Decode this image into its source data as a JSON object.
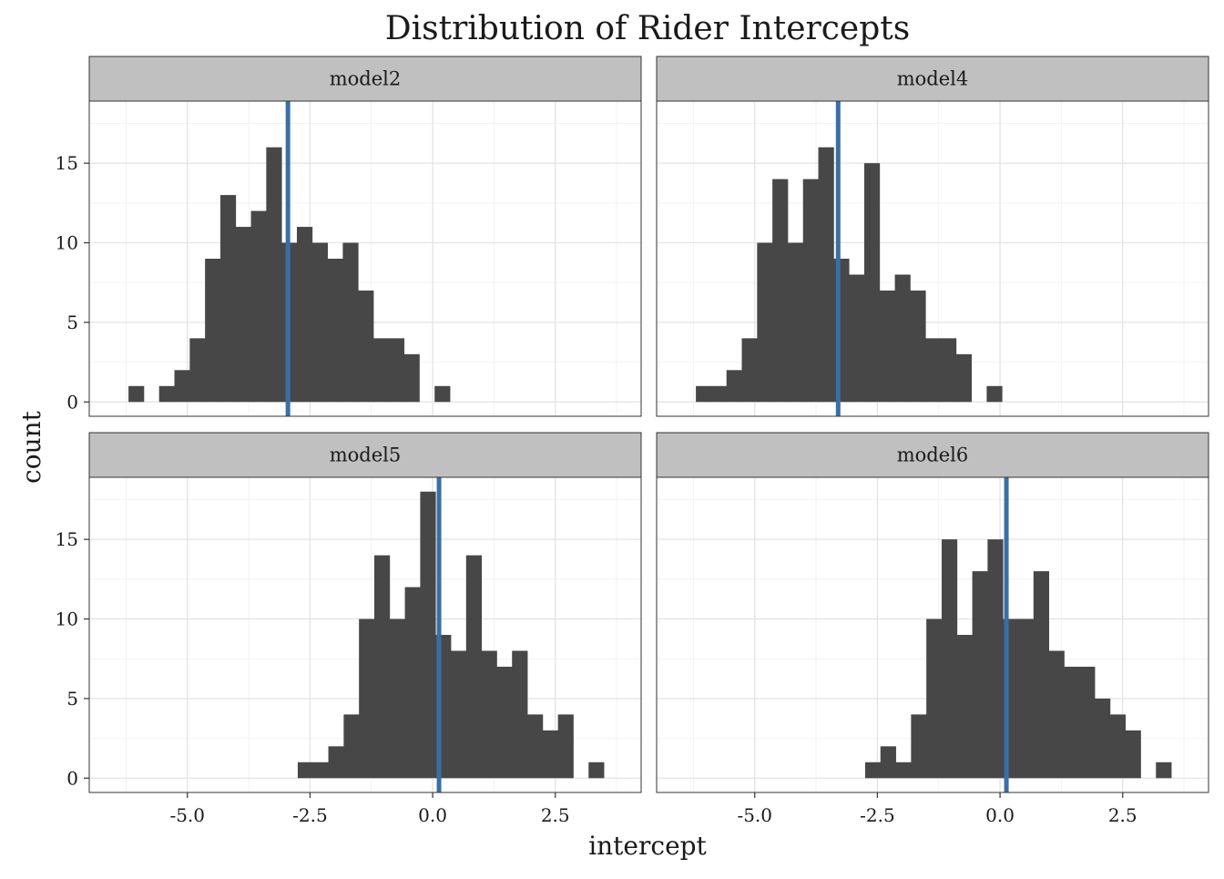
{
  "chart_data": {
    "type": "bar",
    "subtype": "faceted-histogram",
    "title": "Distribution of Rider Intercepts",
    "xlabel": "intercept",
    "ylabel": "count",
    "xlim": [
      -7.0,
      4.25
    ],
    "ylim": [
      -0.9,
      18.9
    ],
    "x_ticks": [
      -5.0,
      -2.5,
      0.0,
      2.5
    ],
    "x_tick_labels": [
      "-5.0",
      "-2.5",
      "0.0",
      "2.5"
    ],
    "y_ticks": [
      0,
      5,
      10,
      15
    ],
    "y_tick_labels": [
      "0",
      "5",
      "10",
      "15"
    ],
    "grid": true,
    "bar_color": "#474747",
    "mean_line_color": "#3a6fa5",
    "strip_color": "#c0c0c0",
    "facets": [
      {
        "label": "model2",
        "bin_start": -6.2,
        "bin_width": 0.312,
        "counts": [
          1,
          0,
          1,
          2,
          4,
          9,
          13,
          11,
          12,
          16,
          10,
          11,
          10,
          9,
          10,
          7,
          4,
          4,
          3,
          0,
          1
        ],
        "mean_line_x": -2.95
      },
      {
        "label": "model4",
        "bin_start": -6.2,
        "bin_width": 0.312,
        "counts": [
          1,
          1,
          2,
          4,
          10,
          14,
          10,
          14,
          16,
          9,
          8,
          15,
          7,
          8,
          7,
          4,
          4,
          3,
          0,
          1
        ],
        "mean_line_x": -3.3
      },
      {
        "label": "model5",
        "bin_start": -2.75,
        "bin_width": 0.312,
        "counts": [
          1,
          1,
          2,
          4,
          10,
          14,
          10,
          12,
          18,
          9,
          8,
          14,
          8,
          7,
          8,
          4,
          3,
          4,
          0,
          1
        ],
        "mean_line_x": 0.13
      },
      {
        "label": "model6",
        "bin_start": -2.75,
        "bin_width": 0.312,
        "counts": [
          1,
          2,
          1,
          4,
          10,
          15,
          9,
          13,
          15,
          10,
          10,
          13,
          8,
          7,
          7,
          5,
          4,
          3,
          0,
          1
        ],
        "mean_line_x": 0.13
      }
    ]
  }
}
